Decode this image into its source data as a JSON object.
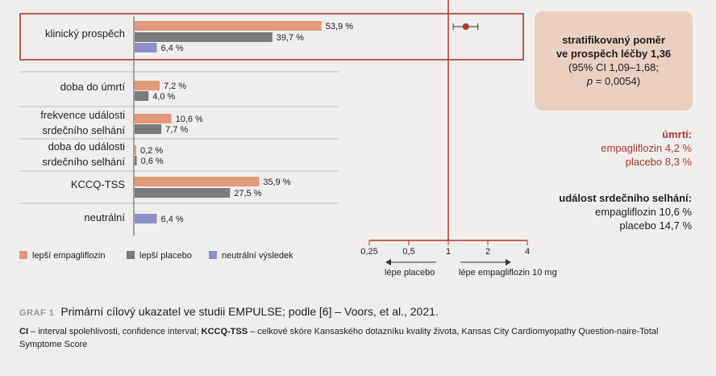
{
  "chart_data": {
    "type": "bar",
    "orientation": "horizontal",
    "categories": [
      [
        "klinický prospěch"
      ],
      [
        "doba do úmrtí"
      ],
      [
        "frekvence události",
        "srdečního selhání"
      ],
      [
        "doba do události",
        "srdečního selhání"
      ],
      [
        "KCCQ-TSS"
      ],
      [
        "neutrální"
      ]
    ],
    "series": [
      {
        "name": "lepší empagliflozin",
        "color": "#e2987b",
        "values": [
          53.9,
          7.2,
          10.6,
          0.2,
          35.9,
          null
        ]
      },
      {
        "name": "lepší placebo",
        "color": "#7b7b7b",
        "values": [
          39.7,
          4.0,
          7.7,
          0.6,
          27.5,
          null
        ]
      },
      {
        "name": "neutrální výsledek",
        "color": "#8f91c6",
        "values": [
          6.4,
          null,
          null,
          null,
          null,
          6.4
        ]
      }
    ],
    "value_labels": [
      [
        "53,9 %",
        "39,7 %",
        "6,4 %"
      ],
      [
        "7,2 %",
        "4,0 %"
      ],
      [
        "10,6 %",
        "7,7 %"
      ],
      [
        "0,2 %",
        "0,6 %"
      ],
      [
        "35,9 %",
        "27,5 %"
      ],
      [
        "6,4 %"
      ]
    ],
    "highlighted_category": "klinický prospěch",
    "forest_plot": {
      "type": "scatter",
      "scale": "log",
      "ticks": [
        0.25,
        0.5,
        1,
        2,
        4
      ],
      "tick_labels": [
        "0,25",
        "0,5",
        "1",
        "2",
        "4"
      ],
      "reference_line": 1,
      "point": 1.36,
      "ci": [
        1.09,
        1.68
      ],
      "arrow_left_label": "lépe placebo",
      "arrow_right_label": "lépe empagliflozin 10 mg"
    }
  },
  "ratio_box": {
    "line1": "stratifikovaný poměr",
    "line2": "ve prospěch léčby 1,36",
    "line3": "(95% CI 1,09–1,68;",
    "line4_p": "p",
    "line4_rest": " = 0,0054)"
  },
  "death": {
    "heading": "úmrtí:",
    "empa": "empagliflozin 4,2 %",
    "placebo": "placebo 8,3 %"
  },
  "hf_event": {
    "heading": "událost srdečního selhání:",
    "empa": "empagliflozin 10,6 %",
    "placebo": "placebo 14,7 %"
  },
  "caption": {
    "tag": "GRAF 1",
    "text": "Primární cílový ukazatel ve studii EMPULSE; podle [6] – Voors, et al., 2021."
  },
  "note": {
    "ci_abbr": "CI",
    "ci_text": " – interval spolehlivosti, confidence interval; ",
    "kccq_abbr": "KCCQ-TSS",
    "kccq_text": " – celkové skóre Kansaského dotazníku kvality života, Kansas City Cardiomyopathy Question-naire-Total Symptome Score"
  },
  "colors": {
    "accent": "#b0392c",
    "empa": "#e2987b",
    "placebo": "#7b7b7b",
    "neutral": "#8f91c6",
    "box": "#e9d0c1"
  }
}
